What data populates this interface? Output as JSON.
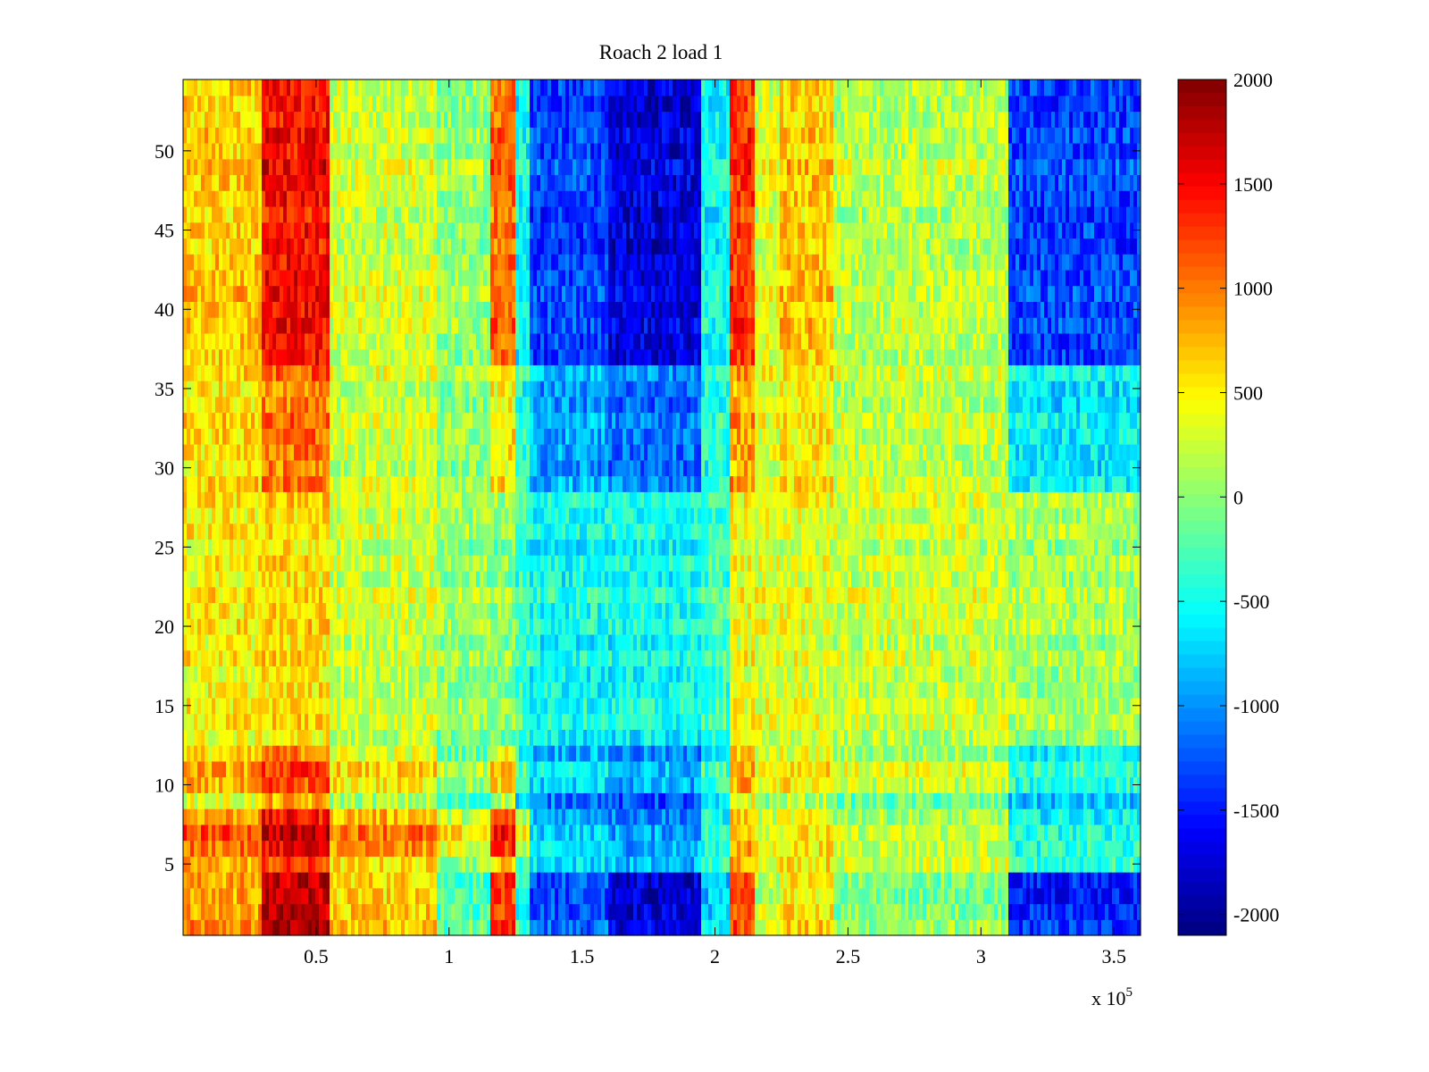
{
  "chart_data": {
    "type": "heatmap",
    "title": "Roach 2 load 1",
    "xlabel": "",
    "ylabel": "",
    "x_exponent_label": "x 10",
    "x_exponent_power": "5",
    "xlim": [
      0,
      3.6
    ],
    "ylim": [
      0.5,
      54.5
    ],
    "x_ticks": [
      0.5,
      1,
      1.5,
      2,
      2.5,
      3,
      3.5
    ],
    "x_tick_labels": [
      "0.5",
      "1",
      "1.5",
      "2",
      "2.5",
      "3",
      "3.5"
    ],
    "y_ticks": [
      5,
      10,
      15,
      20,
      25,
      30,
      35,
      40,
      45,
      50
    ],
    "y_tick_labels": [
      "5",
      "10",
      "15",
      "20",
      "25",
      "30",
      "35",
      "40",
      "45",
      "50"
    ],
    "n_rows": 54,
    "colormap": "jet",
    "colorbar": {
      "clim": [
        -2100,
        2000
      ],
      "ticks": [
        2000,
        1500,
        1000,
        500,
        0,
        -500,
        -1000,
        -1500,
        -2000
      ],
      "tick_labels": [
        "2000",
        "1500",
        "1000",
        "500",
        "0",
        "-500",
        "-1000",
        "-1500",
        "-2000"
      ]
    },
    "column_bands": [
      {
        "x_start": 0.0,
        "x_end": 0.3,
        "value_top": 700,
        "value_mid": 500,
        "value_bottom": 900
      },
      {
        "x_start": 0.3,
        "x_end": 0.55,
        "value_top": 1500,
        "value_mid": 600,
        "value_bottom": 1800
      },
      {
        "x_start": 0.55,
        "x_end": 0.95,
        "value_top": 300,
        "value_mid": 250,
        "value_bottom": 700
      },
      {
        "x_start": 0.95,
        "x_end": 1.15,
        "value_top": 50,
        "value_mid": 50,
        "value_bottom": -200
      },
      {
        "x_start": 1.15,
        "x_end": 1.25,
        "value_top": 1100,
        "value_mid": 0,
        "value_bottom": 1300
      },
      {
        "x_start": 1.25,
        "x_end": 1.3,
        "value_top": -500,
        "value_mid": -300,
        "value_bottom": -400
      },
      {
        "x_start": 1.3,
        "x_end": 1.6,
        "value_top": -1300,
        "value_mid": -500,
        "value_bottom": -1200
      },
      {
        "x_start": 1.6,
        "x_end": 1.95,
        "value_top": -1700,
        "value_mid": -500,
        "value_bottom": -1700
      },
      {
        "x_start": 1.95,
        "x_end": 2.05,
        "value_top": -500,
        "value_mid": -300,
        "value_bottom": -700
      },
      {
        "x_start": 2.05,
        "x_end": 2.15,
        "value_top": 1300,
        "value_mid": 400,
        "value_bottom": 1200
      },
      {
        "x_start": 2.15,
        "x_end": 2.25,
        "value_top": 350,
        "value_mid": 350,
        "value_bottom": 300
      },
      {
        "x_start": 2.25,
        "x_end": 2.45,
        "value_top": 700,
        "value_mid": 350,
        "value_bottom": 600
      },
      {
        "x_start": 2.45,
        "x_end": 3.1,
        "value_top": 200,
        "value_mid": 250,
        "value_bottom": 0
      },
      {
        "x_start": 3.1,
        "x_end": 3.6,
        "value_top": -1300,
        "value_mid": 100,
        "value_bottom": -1400
      }
    ],
    "special_rows": [
      {
        "row": 6,
        "offset": 400,
        "x_end": 1.3
      },
      {
        "row": 7,
        "offset": 600,
        "x_end": 1.3
      },
      {
        "row": 8,
        "offset": 400,
        "x_end": 1.3
      },
      {
        "row": 9,
        "offset": -200,
        "x_end": 3.6
      },
      {
        "row": 11,
        "offset": 300,
        "x_end": 3.6
      }
    ]
  }
}
